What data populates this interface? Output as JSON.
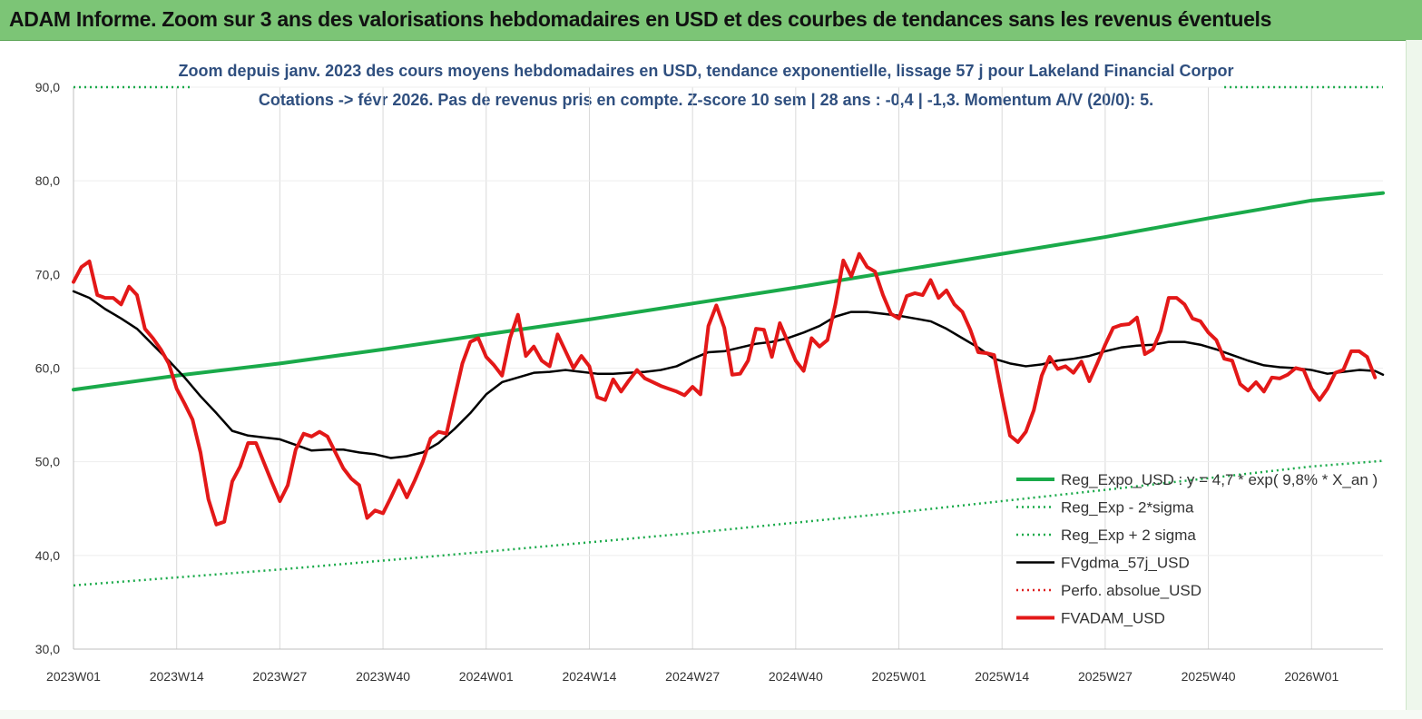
{
  "header": {
    "title": "ADAM Informe. Zoom sur 3 ans des valorisations hebdomadaires en USD et des courbes de tendances sans les revenus éventuels"
  },
  "colors": {
    "header_bg": "#7cc576",
    "reg_expo": "#1aaa4a",
    "sigma": "#1aaa4a",
    "fvgdma": "#000000",
    "perfo": "#e02020",
    "fvadam": "#e31818",
    "subtitle": "#2f4f7f",
    "grid": "#d9d9d9"
  },
  "chart_data": {
    "type": "line",
    "subtitle_line1": "Zoom depuis janv. 2023 des cours moyens hebdomadaires en USD, tendance exponentielle, lissage 57 j pour Lakeland Financial Corpor",
    "subtitle_line2": "Cotations -> févr 2026.  Pas de revenus pris en compte. Z-score 10 sem  | 28 ans : -0,4 | -1,3. Momentum A/V (20/0): 5.",
    "ylim": [
      30,
      90
    ],
    "yticks": [
      "90,0",
      "80,0",
      "70,0",
      "60,0",
      "50,0",
      "40,0",
      "30,0"
    ],
    "ytick_values": [
      90,
      80,
      70,
      60,
      50,
      40,
      30
    ],
    "x_count": 162,
    "xticks": [
      {
        "label": "2023W01",
        "index": 0
      },
      {
        "label": "2023W14",
        "index": 13
      },
      {
        "label": "2023W27",
        "index": 26
      },
      {
        "label": "2023W40",
        "index": 39
      },
      {
        "label": "2024W01",
        "index": 52
      },
      {
        "label": "2024W14",
        "index": 65
      },
      {
        "label": "2024W27",
        "index": 78
      },
      {
        "label": "2024W40",
        "index": 91
      },
      {
        "label": "2025W01",
        "index": 104
      },
      {
        "label": "2025W14",
        "index": 117
      },
      {
        "label": "2025W27",
        "index": 130
      },
      {
        "label": "2025W40",
        "index": 143
      },
      {
        "label": "2026W01",
        "index": 156
      }
    ],
    "legend_position": "bottom-right",
    "grid": "vertical",
    "series": [
      {
        "name": "Reg_Expo_USD : y = 4,7 * exp( 9,8% *  X_an )",
        "style": "solid-thick",
        "color": "#1aaa4a",
        "points": [
          [
            0,
            57.7
          ],
          [
            13,
            59.2
          ],
          [
            26,
            60.5
          ],
          [
            39,
            62.0
          ],
          [
            52,
            63.6
          ],
          [
            65,
            65.2
          ],
          [
            78,
            66.9
          ],
          [
            91,
            68.6
          ],
          [
            104,
            70.4
          ],
          [
            117,
            72.2
          ],
          [
            130,
            74.0
          ],
          [
            143,
            76.0
          ],
          [
            156,
            77.9
          ],
          [
            165,
            78.7
          ]
        ]
      },
      {
        "name": "Reg_Exp - 2*sigma",
        "style": "dotted",
        "color": "#1aaa4a",
        "points": [
          [
            0,
            36.8
          ],
          [
            26,
            38.5
          ],
          [
            52,
            40.4
          ],
          [
            78,
            42.4
          ],
          [
            104,
            44.6
          ],
          [
            130,
            47.0
          ],
          [
            156,
            49.5
          ],
          [
            165,
            50.1
          ]
        ]
      },
      {
        "name": "Reg_Exp + 2 sigma",
        "style": "dotted",
        "color": "#1aaa4a",
        "points": [
          [
            0,
            90.0
          ],
          [
            15,
            90.0
          ]
        ],
        "points_b": [
          [
            145,
            90.0
          ],
          [
            165,
            90.0
          ]
        ]
      },
      {
        "name": "FVgdma_57j_USD",
        "style": "solid",
        "color": "#000000",
        "points": [
          [
            0,
            68.2
          ],
          [
            2,
            67.5
          ],
          [
            4,
            66.3
          ],
          [
            6,
            65.3
          ],
          [
            8,
            64.2
          ],
          [
            10,
            62.5
          ],
          [
            12,
            60.8
          ],
          [
            14,
            59.0
          ],
          [
            16,
            57.0
          ],
          [
            18,
            55.2
          ],
          [
            20,
            53.3
          ],
          [
            22,
            52.8
          ],
          [
            24,
            52.6
          ],
          [
            26,
            52.4
          ],
          [
            28,
            51.8
          ],
          [
            30,
            51.2
          ],
          [
            32,
            51.3
          ],
          [
            34,
            51.3
          ],
          [
            36,
            51.0
          ],
          [
            38,
            50.8
          ],
          [
            40,
            50.4
          ],
          [
            42,
            50.6
          ],
          [
            44,
            51.0
          ],
          [
            46,
            52.0
          ],
          [
            48,
            53.5
          ],
          [
            50,
            55.2
          ],
          [
            52,
            57.2
          ],
          [
            54,
            58.5
          ],
          [
            56,
            59.0
          ],
          [
            58,
            59.5
          ],
          [
            60,
            59.6
          ],
          [
            62,
            59.8
          ],
          [
            64,
            59.6
          ],
          [
            66,
            59.4
          ],
          [
            68,
            59.4
          ],
          [
            70,
            59.5
          ],
          [
            72,
            59.6
          ],
          [
            74,
            59.8
          ],
          [
            76,
            60.2
          ],
          [
            78,
            61.0
          ],
          [
            80,
            61.7
          ],
          [
            82,
            61.8
          ],
          [
            84,
            62.2
          ],
          [
            86,
            62.6
          ],
          [
            88,
            62.8
          ],
          [
            90,
            63.2
          ],
          [
            92,
            63.8
          ],
          [
            94,
            64.5
          ],
          [
            96,
            65.5
          ],
          [
            98,
            66.0
          ],
          [
            100,
            66.0
          ],
          [
            102,
            65.8
          ],
          [
            104,
            65.6
          ],
          [
            106,
            65.3
          ],
          [
            108,
            65.0
          ],
          [
            110,
            64.2
          ],
          [
            112,
            63.2
          ],
          [
            114,
            62.2
          ],
          [
            116,
            61.0
          ],
          [
            118,
            60.5
          ],
          [
            120,
            60.2
          ],
          [
            122,
            60.4
          ],
          [
            124,
            60.8
          ],
          [
            126,
            61.0
          ],
          [
            128,
            61.3
          ],
          [
            130,
            61.8
          ],
          [
            132,
            62.2
          ],
          [
            134,
            62.4
          ],
          [
            136,
            62.5
          ],
          [
            138,
            62.8
          ],
          [
            140,
            62.8
          ],
          [
            142,
            62.5
          ],
          [
            144,
            62.0
          ],
          [
            146,
            61.4
          ],
          [
            148,
            60.8
          ],
          [
            150,
            60.3
          ],
          [
            152,
            60.1
          ],
          [
            154,
            60.0
          ],
          [
            156,
            59.8
          ],
          [
            158,
            59.4
          ],
          [
            160,
            59.6
          ],
          [
            162,
            59.8
          ],
          [
            164,
            59.7
          ],
          [
            165,
            59.3
          ]
        ]
      },
      {
        "name": "Perfo. absolue_USD",
        "style": "dotted",
        "color": "#e02020",
        "points": []
      },
      {
        "name": "FVADAM_USD",
        "style": "solid-thick",
        "color": "#e31818",
        "points": [
          [
            0,
            69.2
          ],
          [
            1,
            70.8
          ],
          [
            2,
            71.4
          ],
          [
            3,
            67.8
          ],
          [
            4,
            67.5
          ],
          [
            5,
            67.5
          ],
          [
            6,
            66.8
          ],
          [
            7,
            68.7
          ],
          [
            8,
            67.8
          ],
          [
            9,
            64.2
          ],
          [
            10,
            63.2
          ],
          [
            11,
            62.0
          ],
          [
            12,
            60.5
          ],
          [
            13,
            57.8
          ],
          [
            14,
            56.2
          ],
          [
            15,
            54.5
          ],
          [
            16,
            51.0
          ],
          [
            17,
            46.0
          ],
          [
            18,
            43.3
          ],
          [
            19,
            43.6
          ],
          [
            20,
            47.9
          ],
          [
            21,
            49.5
          ],
          [
            22,
            52.0
          ],
          [
            23,
            52.0
          ],
          [
            24,
            49.9
          ],
          [
            25,
            47.8
          ],
          [
            26,
            45.8
          ],
          [
            27,
            47.5
          ],
          [
            28,
            51.3
          ],
          [
            29,
            53.0
          ],
          [
            30,
            52.7
          ],
          [
            31,
            53.2
          ],
          [
            32,
            52.7
          ],
          [
            33,
            51.0
          ],
          [
            34,
            49.3
          ],
          [
            35,
            48.2
          ],
          [
            36,
            47.5
          ],
          [
            37,
            44.0
          ],
          [
            38,
            44.8
          ],
          [
            39,
            44.5
          ],
          [
            40,
            46.2
          ],
          [
            41,
            48.0
          ],
          [
            42,
            46.2
          ],
          [
            43,
            48.0
          ],
          [
            44,
            50.0
          ],
          [
            45,
            52.5
          ],
          [
            46,
            53.2
          ],
          [
            47,
            53.0
          ],
          [
            48,
            56.8
          ],
          [
            49,
            60.5
          ],
          [
            50,
            62.8
          ],
          [
            51,
            63.2
          ],
          [
            52,
            61.2
          ],
          [
            53,
            60.3
          ],
          [
            54,
            59.2
          ],
          [
            55,
            63.2
          ],
          [
            56,
            65.7
          ],
          [
            57,
            61.3
          ],
          [
            58,
            62.3
          ],
          [
            59,
            60.8
          ],
          [
            60,
            60.2
          ],
          [
            61,
            63.6
          ],
          [
            62,
            61.8
          ],
          [
            63,
            60.0
          ],
          [
            64,
            61.3
          ],
          [
            65,
            60.2
          ],
          [
            66,
            56.9
          ],
          [
            67,
            56.6
          ],
          [
            68,
            58.8
          ],
          [
            69,
            57.5
          ],
          [
            70,
            58.7
          ],
          [
            71,
            59.8
          ],
          [
            72,
            58.9
          ],
          [
            73,
            58.5
          ],
          [
            74,
            58.1
          ],
          [
            75,
            57.8
          ],
          [
            76,
            57.5
          ],
          [
            77,
            57.1
          ],
          [
            78,
            58.0
          ],
          [
            79,
            57.2
          ],
          [
            80,
            64.5
          ],
          [
            81,
            66.7
          ],
          [
            82,
            64.3
          ],
          [
            83,
            59.3
          ],
          [
            84,
            59.4
          ],
          [
            85,
            60.8
          ],
          [
            86,
            64.2
          ],
          [
            87,
            64.1
          ],
          [
            88,
            61.2
          ],
          [
            89,
            64.8
          ],
          [
            90,
            62.8
          ],
          [
            91,
            60.8
          ],
          [
            92,
            59.7
          ],
          [
            93,
            63.2
          ],
          [
            94,
            62.3
          ],
          [
            95,
            63.0
          ],
          [
            96,
            66.8
          ],
          [
            97,
            71.5
          ],
          [
            98,
            69.8
          ],
          [
            99,
            72.2
          ],
          [
            100,
            70.8
          ],
          [
            101,
            70.3
          ],
          [
            102,
            67.8
          ],
          [
            103,
            65.8
          ],
          [
            104,
            65.3
          ],
          [
            105,
            67.7
          ],
          [
            106,
            68.0
          ],
          [
            107,
            67.8
          ],
          [
            108,
            69.4
          ],
          [
            109,
            67.5
          ],
          [
            110,
            68.3
          ],
          [
            111,
            66.8
          ],
          [
            112,
            66.0
          ],
          [
            113,
            64.1
          ],
          [
            114,
            61.7
          ],
          [
            115,
            61.6
          ],
          [
            116,
            61.4
          ],
          [
            117,
            57.0
          ],
          [
            118,
            52.8
          ],
          [
            119,
            52.1
          ],
          [
            120,
            53.2
          ],
          [
            121,
            55.5
          ],
          [
            122,
            59.2
          ],
          [
            123,
            61.2
          ],
          [
            124,
            59.9
          ],
          [
            125,
            60.2
          ],
          [
            126,
            59.5
          ],
          [
            127,
            60.7
          ],
          [
            128,
            58.6
          ],
          [
            129,
            60.5
          ],
          [
            130,
            62.5
          ],
          [
            131,
            64.3
          ],
          [
            132,
            64.6
          ],
          [
            133,
            64.7
          ],
          [
            134,
            65.4
          ],
          [
            135,
            61.5
          ],
          [
            136,
            62.0
          ],
          [
            137,
            64.0
          ],
          [
            138,
            67.5
          ],
          [
            139,
            67.5
          ],
          [
            140,
            66.8
          ],
          [
            141,
            65.3
          ],
          [
            142,
            65.0
          ],
          [
            143,
            63.8
          ],
          [
            144,
            63.0
          ],
          [
            145,
            61.0
          ],
          [
            146,
            60.8
          ],
          [
            147,
            58.3
          ],
          [
            148,
            57.6
          ],
          [
            149,
            58.5
          ],
          [
            150,
            57.5
          ],
          [
            151,
            59.0
          ],
          [
            152,
            58.9
          ],
          [
            153,
            59.3
          ],
          [
            154,
            60.0
          ],
          [
            155,
            59.8
          ],
          [
            156,
            57.8
          ],
          [
            157,
            56.6
          ],
          [
            158,
            57.8
          ],
          [
            159,
            59.5
          ],
          [
            160,
            59.8
          ],
          [
            161,
            61.8
          ],
          [
            162,
            61.8
          ],
          [
            163,
            61.2
          ],
          [
            164,
            59.0
          ]
        ]
      }
    ]
  }
}
